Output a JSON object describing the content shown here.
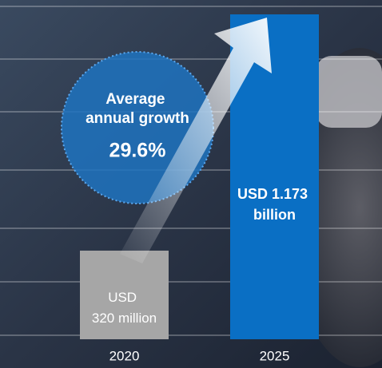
{
  "chart_data": {
    "type": "bar",
    "categories": [
      "2020",
      "2025"
    ],
    "values": [
      320,
      1173
    ],
    "value_labels": [
      "USD 320 million",
      "USD 1.173 billion"
    ],
    "colors": [
      "#a6a6a6",
      "#0a6fc4"
    ],
    "annotation": "Average annual growth",
    "annotation_value": "29.6%"
  }
}
